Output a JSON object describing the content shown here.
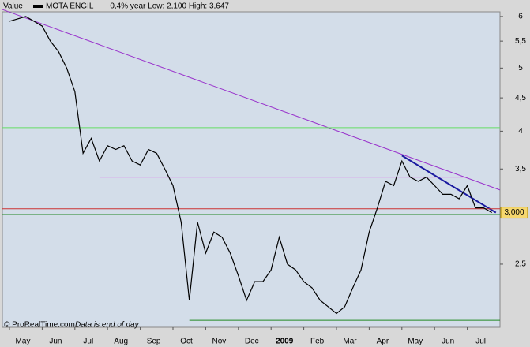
{
  "chart_data": {
    "type": "line",
    "legend_label": "Value",
    "subtitle": "-0,4%  year Low: 2,100 High: 3,647",
    "footer": "© ProRealTime.com",
    "footer_note": "Data is end of day",
    "log_scale": true,
    "categories": [
      "May",
      null,
      null,
      null,
      "Jun",
      null,
      null,
      null,
      "Jul",
      null,
      null,
      null,
      "Aug",
      null,
      null,
      null,
      "Sep",
      null,
      null,
      null,
      "Oct",
      null,
      null,
      null,
      "Nov",
      null,
      null,
      null,
      "Dec",
      null,
      null,
      null,
      "2009",
      null,
      null,
      null,
      "Feb",
      null,
      null,
      null,
      "Mar",
      null,
      null,
      null,
      "Apr",
      null,
      null,
      null,
      "May",
      null,
      null,
      null,
      "Jun",
      null,
      null,
      null,
      "Jul",
      null,
      null,
      null
    ],
    "series": [
      {
        "name": "MOTA ENGIL",
        "color": "#000000",
        "values": [
          5.9,
          5.95,
          6.0,
          5.9,
          5.8,
          5.5,
          5.3,
          5.0,
          4.6,
          3.7,
          3.9,
          3.6,
          3.8,
          3.75,
          3.8,
          3.6,
          3.55,
          3.75,
          3.7,
          3.5,
          3.3,
          2.9,
          2.2,
          2.9,
          2.6,
          2.8,
          2.75,
          2.6,
          2.4,
          2.2,
          2.35,
          2.35,
          2.45,
          2.75,
          2.5,
          2.45,
          2.35,
          2.3,
          2.2,
          2.15,
          2.1,
          2.15,
          2.3,
          2.45,
          2.8,
          3.05,
          3.35,
          3.3,
          3.6,
          3.4,
          3.35,
          3.4,
          3.3,
          3.2,
          3.2,
          3.15,
          3.3,
          3.05,
          3.05,
          3.0
        ]
      }
    ],
    "ylim": [
      2.0,
      6.1
    ],
    "yticks": [
      6,
      {
        "value": 5.5,
        "label": "5,5"
      },
      5,
      {
        "value": 4.5,
        "label": "4,5"
      },
      4,
      {
        "value": 3.5,
        "label": "3,5"
      },
      {
        "value": 2.5,
        "label": "2,5"
      }
    ],
    "last_price": {
      "value": 3.0,
      "label": "3,000"
    },
    "annotations": [
      {
        "color": "#9933cc",
        "start": [
          -1,
          6.15
        ],
        "end": [
          60,
          3.25
        ]
      },
      {
        "color": "#1a1aa0",
        "start": [
          48,
          3.67
        ],
        "end": [
          59.5,
          3.0
        ]
      },
      {
        "color": "#ee33ee",
        "start": [
          11,
          3.4
        ],
        "end": [
          56,
          3.4
        ]
      },
      {
        "color": "#66dd66",
        "start": [
          -1,
          4.05
        ],
        "end": [
          60.5,
          4.05
        ]
      },
      {
        "color": "#cc3333",
        "start": [
          -1,
          3.04
        ],
        "end": [
          60.5,
          3.04
        ]
      },
      {
        "color": "#228822",
        "start": [
          -1,
          2.98
        ],
        "end": [
          60.5,
          2.98
        ]
      },
      {
        "color": "#228822",
        "start": [
          22,
          2.05
        ],
        "end": [
          60.5,
          2.05
        ]
      }
    ]
  }
}
